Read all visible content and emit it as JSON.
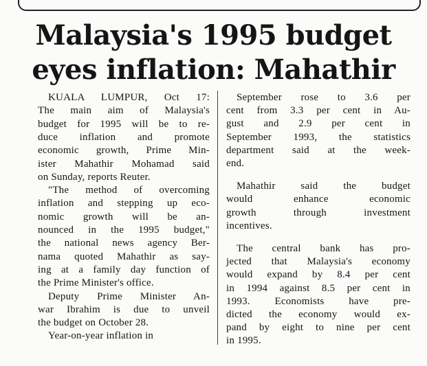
{
  "headline": [
    "Malaysia's 1995 budget",
    "eyes inflation: Mahathir"
  ],
  "columns": [
    {
      "paragraphs": [
        {
          "lines": [
            "KUALA LUMPUR, Oct 17:",
            "The main aim of Malaysia's",
            "budget for 1995 will be to re-",
            "duce inflation and promote",
            "economic growth, Prime Min-",
            "ister Mahathir Mohamad said",
            "on Sunday, reports Reuter."
          ]
        },
        {
          "lines": [
            "\"The method of overcoming",
            "inflation and stepping up eco-",
            "nomic growth will be an-",
            "nounced in the 1995 budget,\"",
            "the national news agency Ber-",
            "nama quoted Mahathir as say-",
            "ing at a family day function of",
            "the Prime Minister's office."
          ]
        },
        {
          "lines": [
            "Deputy Prime Minister An-",
            "war Ibrahim is due to unveil",
            "the budget on October 28."
          ]
        },
        {
          "lines": [
            "Year-on-year inflation in"
          ]
        }
      ]
    },
    {
      "paragraphs": [
        {
          "lines": [
            "September rose to 3.6 per",
            "cent from 3.3 per cent in Au-",
            "gust and 2.9 per cent in",
            "September 1993, the statistics",
            "department said at the week-",
            "end."
          ]
        },
        {
          "lines": [
            "Mahathir said the budget",
            "would enhance economic",
            "growth through investment",
            "incentives."
          ]
        },
        {
          "lines": [
            "The central bank has pro-",
            "jected that Malaysia's economy",
            "would expand by 8.4 per cent",
            "in 1994 against 8.5 per cent in",
            "1993. Economists have pre-",
            "dicted the economy would ex-",
            "pand by eight to nine per cent",
            "in 1995."
          ]
        }
      ]
    }
  ]
}
